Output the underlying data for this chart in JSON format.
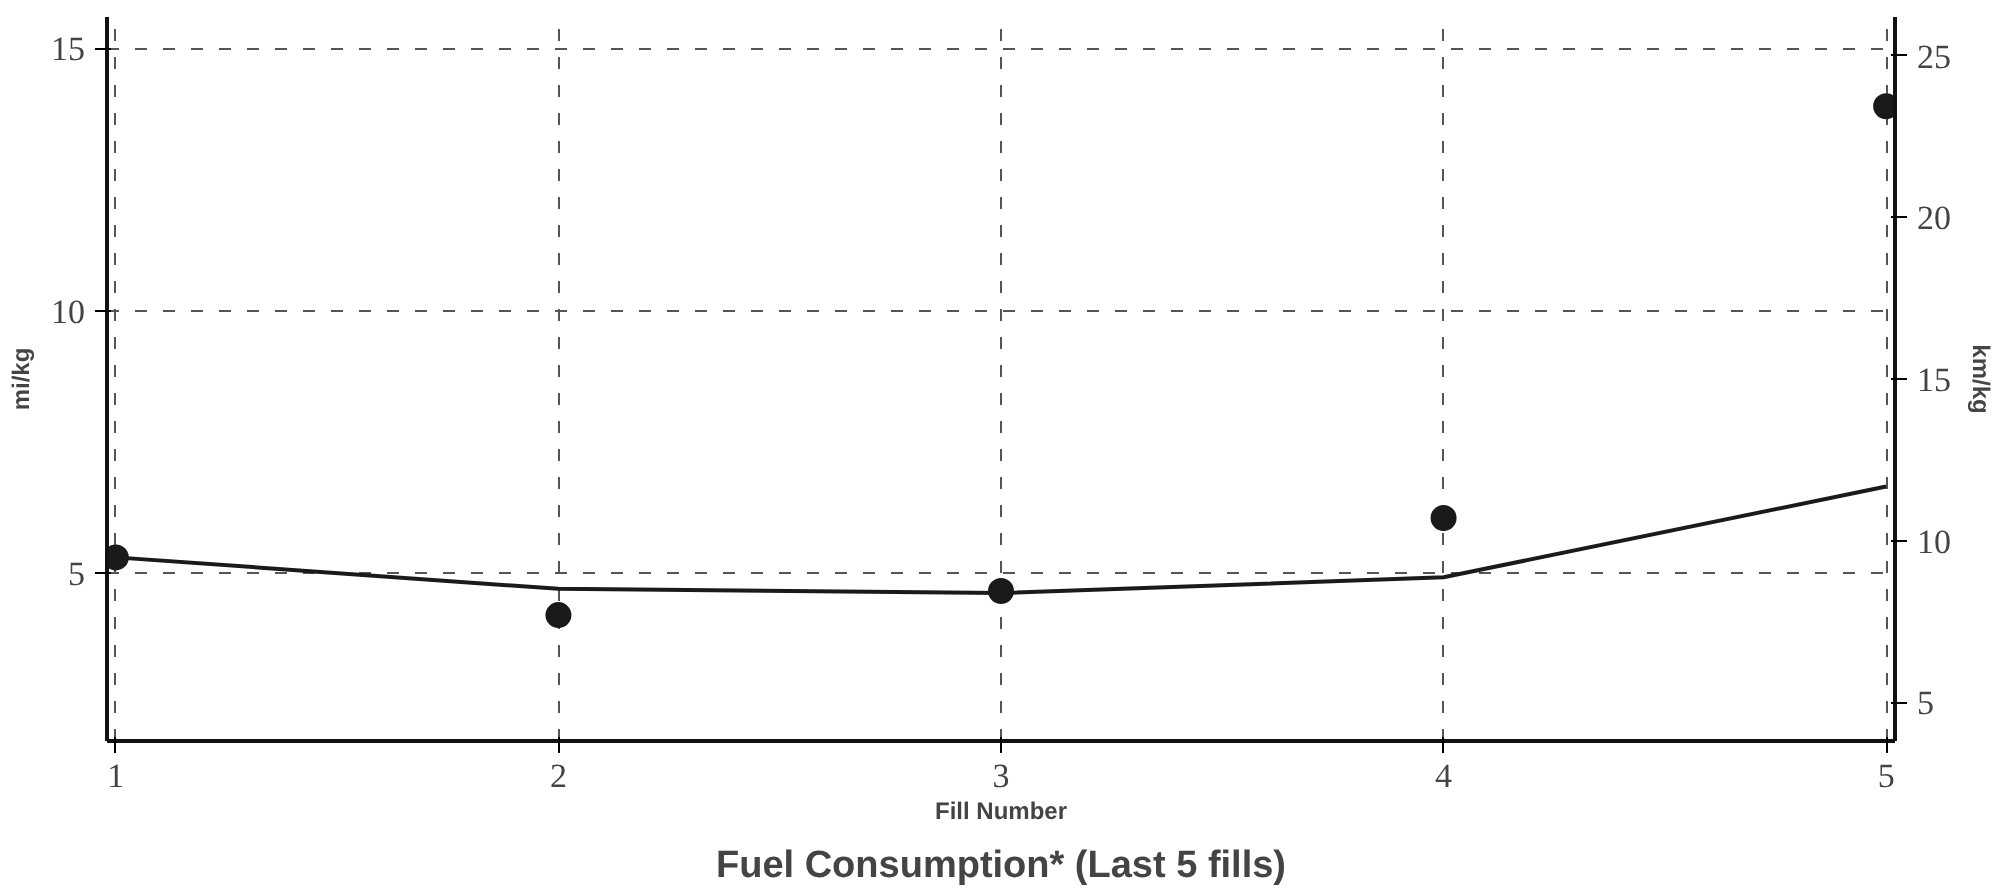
{
  "chart_data": {
    "type": "line",
    "title": "Fuel Consumption* (Last 5 fills)",
    "xlabel": "Fill Number",
    "ylabel": "mi/kg",
    "y2label": "km/kg",
    "x": [
      1,
      2,
      3,
      4,
      5
    ],
    "series": [
      {
        "color": "#1a1a1a",
        "values": [
          5.3,
          4.7,
          4.62,
          4.92,
          6.65
        ],
        "marker": "none"
      },
      {
        "type": "scatter",
        "color": "#1a1a1a",
        "values": [
          5.3,
          4.2,
          4.66,
          6.05,
          13.9
        ],
        "marker": "circle"
      }
    ],
    "xlim": [
      0.98,
      5.02
    ],
    "xticks": [
      1,
      2,
      3,
      4,
      5
    ],
    "ylim": [
      1.8,
      15.6
    ],
    "yticks": [
      5,
      10,
      15
    ],
    "y2lim": [
      3.8,
      26.2
    ],
    "y2ticks": [
      5,
      10,
      15,
      20,
      25
    ],
    "grid": true
  }
}
